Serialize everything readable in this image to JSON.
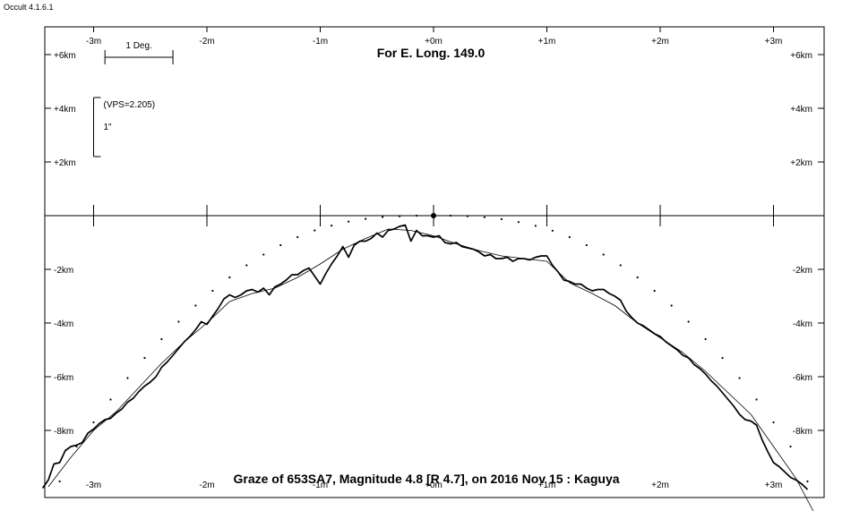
{
  "app": {
    "version": "Occult 4.1.6.1"
  },
  "chart_data": {
    "type": "line",
    "title": "For E. Long. 149.0",
    "caption": "Graze of  653SA7,  Magnitude 4.8 [R 4.7],  on 2016 Nov 15  :  Kaguya",
    "x_unit": "m",
    "y_unit": "km",
    "xlim": [
      -3.45,
      3.45
    ],
    "ylim": [
      -10.3,
      7.0
    ],
    "x_ticks": [
      {
        "value": -3,
        "label": "-3m"
      },
      {
        "value": -2,
        "label": "-2m"
      },
      {
        "value": -1,
        "label": "-1m"
      },
      {
        "value": 0,
        "label": "+0m"
      },
      {
        "value": 1,
        "label": "+1m"
      },
      {
        "value": 2,
        "label": "+2m"
      },
      {
        "value": 3,
        "label": "+3m"
      }
    ],
    "y_ticks_upper": [
      {
        "value": 6,
        "label": "+6km"
      },
      {
        "value": 4,
        "label": "+4km"
      },
      {
        "value": 2,
        "label": "+2km"
      }
    ],
    "y_ticks_lower": [
      {
        "value": -2,
        "label": "-2km"
      },
      {
        "value": -4,
        "label": "-4km"
      },
      {
        "value": -6,
        "label": "-6km"
      },
      {
        "value": -8,
        "label": "-8km"
      }
    ],
    "scale_bar": {
      "label": "1 Deg.",
      "x_from": -2.9,
      "x_to": -2.3,
      "y": 5.9
    },
    "vps_bar": {
      "label": "(VPS=2.205)",
      "sub_label": "1\"",
      "x": -3.0,
      "y_from": 2.2,
      "y_to": 4.4
    },
    "reference_point": {
      "x": 0.0,
      "y": 0.0
    },
    "series": [
      {
        "style": "dotted",
        "points": [
          [
            -3.3,
            -9.9
          ],
          [
            -3.15,
            -8.6
          ],
          [
            -3.0,
            -7.7
          ],
          [
            -2.85,
            -6.85
          ],
          [
            -2.7,
            -6.05
          ],
          [
            -2.55,
            -5.3
          ],
          [
            -2.4,
            -4.6
          ],
          [
            -2.25,
            -3.95
          ],
          [
            -2.1,
            -3.35
          ],
          [
            -1.95,
            -2.8
          ],
          [
            -1.8,
            -2.3
          ],
          [
            -1.65,
            -1.85
          ],
          [
            -1.5,
            -1.45
          ],
          [
            -1.35,
            -1.1
          ],
          [
            -1.2,
            -0.8
          ],
          [
            -1.05,
            -0.55
          ],
          [
            -0.9,
            -0.37
          ],
          [
            -0.75,
            -0.22
          ],
          [
            -0.6,
            -0.12
          ],
          [
            -0.45,
            -0.05
          ],
          [
            -0.3,
            -0.02
          ],
          [
            -0.15,
            0.0
          ],
          [
            0.0,
            0.0
          ],
          [
            0.15,
            0.0
          ],
          [
            0.3,
            -0.02
          ],
          [
            0.45,
            -0.06
          ],
          [
            0.6,
            -0.13
          ],
          [
            0.75,
            -0.24
          ],
          [
            0.9,
            -0.38
          ],
          [
            1.05,
            -0.56
          ],
          [
            1.2,
            -0.8
          ],
          [
            1.35,
            -1.1
          ],
          [
            1.5,
            -1.45
          ],
          [
            1.65,
            -1.85
          ],
          [
            1.8,
            -2.3
          ],
          [
            1.95,
            -2.8
          ],
          [
            2.1,
            -3.35
          ],
          [
            2.25,
            -3.95
          ],
          [
            2.4,
            -4.6
          ],
          [
            2.55,
            -5.3
          ],
          [
            2.7,
            -6.05
          ],
          [
            2.85,
            -6.85
          ],
          [
            3.0,
            -7.7
          ],
          [
            3.15,
            -8.6
          ],
          [
            3.3,
            -9.9
          ]
        ]
      },
      {
        "style": "thin",
        "points": [
          [
            -3.4,
            -10.1
          ],
          [
            -3.2,
            -9.0
          ],
          [
            -3.0,
            -8.0
          ],
          [
            -2.8,
            -7.3
          ],
          [
            -2.6,
            -6.4
          ],
          [
            -2.4,
            -5.5
          ],
          [
            -2.2,
            -4.7
          ],
          [
            -2.0,
            -4.0
          ],
          [
            -1.8,
            -3.2
          ],
          [
            -1.6,
            -2.9
          ],
          [
            -1.4,
            -2.7
          ],
          [
            -1.2,
            -2.3
          ],
          [
            -1.0,
            -1.8
          ],
          [
            -0.8,
            -1.25
          ],
          [
            -0.6,
            -0.85
          ],
          [
            -0.4,
            -0.5
          ],
          [
            -0.2,
            -0.55
          ],
          [
            0.0,
            -0.75
          ],
          [
            0.2,
            -1.05
          ],
          [
            0.4,
            -1.3
          ],
          [
            0.6,
            -1.5
          ],
          [
            0.8,
            -1.6
          ],
          [
            1.0,
            -1.7
          ],
          [
            1.2,
            -2.5
          ],
          [
            1.4,
            -2.9
          ],
          [
            1.6,
            -3.35
          ],
          [
            1.8,
            -4.0
          ],
          [
            2.0,
            -4.55
          ],
          [
            2.2,
            -5.1
          ],
          [
            2.4,
            -5.8
          ],
          [
            2.6,
            -6.6
          ],
          [
            2.8,
            -7.4
          ],
          [
            3.0,
            -8.6
          ],
          [
            3.2,
            -9.8
          ],
          [
            3.35,
            -11.0
          ]
        ]
      },
      {
        "style": "profile",
        "points": [
          [
            -3.45,
            -10.15
          ],
          [
            -3.4,
            -9.85
          ],
          [
            -3.35,
            -9.25
          ],
          [
            -3.3,
            -9.2
          ],
          [
            -3.25,
            -8.75
          ],
          [
            -3.2,
            -8.6
          ],
          [
            -3.15,
            -8.55
          ],
          [
            -3.1,
            -8.45
          ],
          [
            -3.05,
            -8.1
          ],
          [
            -3.0,
            -7.95
          ],
          [
            -2.95,
            -7.75
          ],
          [
            -2.9,
            -7.6
          ],
          [
            -2.85,
            -7.55
          ],
          [
            -2.8,
            -7.35
          ],
          [
            -2.75,
            -7.2
          ],
          [
            -2.7,
            -6.95
          ],
          [
            -2.65,
            -6.8
          ],
          [
            -2.6,
            -6.55
          ],
          [
            -2.55,
            -6.35
          ],
          [
            -2.5,
            -6.2
          ],
          [
            -2.45,
            -6.0
          ],
          [
            -2.4,
            -5.65
          ],
          [
            -2.35,
            -5.45
          ],
          [
            -2.3,
            -5.2
          ],
          [
            -2.25,
            -4.95
          ],
          [
            -2.2,
            -4.7
          ],
          [
            -2.15,
            -4.5
          ],
          [
            -2.1,
            -4.25
          ],
          [
            -2.05,
            -3.95
          ],
          [
            -2.0,
            -4.05
          ],
          [
            -1.95,
            -3.75
          ],
          [
            -1.9,
            -3.45
          ],
          [
            -1.85,
            -3.1
          ],
          [
            -1.8,
            -2.95
          ],
          [
            -1.75,
            -3.05
          ],
          [
            -1.7,
            -2.95
          ],
          [
            -1.65,
            -2.8
          ],
          [
            -1.6,
            -2.75
          ],
          [
            -1.55,
            -2.85
          ],
          [
            -1.5,
            -2.7
          ],
          [
            -1.45,
            -2.95
          ],
          [
            -1.4,
            -2.65
          ],
          [
            -1.35,
            -2.55
          ],
          [
            -1.3,
            -2.4
          ],
          [
            -1.25,
            -2.2
          ],
          [
            -1.2,
            -2.2
          ],
          [
            -1.15,
            -2.05
          ],
          [
            -1.1,
            -1.95
          ],
          [
            -1.05,
            -2.25
          ],
          [
            -1.0,
            -2.55
          ],
          [
            -0.95,
            -2.15
          ],
          [
            -0.9,
            -1.8
          ],
          [
            -0.85,
            -1.5
          ],
          [
            -0.8,
            -1.15
          ],
          [
            -0.75,
            -1.55
          ],
          [
            -0.7,
            -1.1
          ],
          [
            -0.65,
            -0.95
          ],
          [
            -0.6,
            -0.95
          ],
          [
            -0.55,
            -0.85
          ],
          [
            -0.5,
            -0.65
          ],
          [
            -0.45,
            -0.8
          ],
          [
            -0.4,
            -0.55
          ],
          [
            -0.35,
            -0.5
          ],
          [
            -0.3,
            -0.4
          ],
          [
            -0.25,
            -0.35
          ],
          [
            -0.2,
            -0.95
          ],
          [
            -0.15,
            -0.55
          ],
          [
            -0.1,
            -0.75
          ],
          [
            -0.05,
            -0.75
          ],
          [
            0.0,
            -0.8
          ],
          [
            0.05,
            -0.75
          ],
          [
            0.1,
            -1.0
          ],
          [
            0.15,
            -1.05
          ],
          [
            0.2,
            -1.0
          ],
          [
            0.25,
            -1.15
          ],
          [
            0.3,
            -1.2
          ],
          [
            0.35,
            -1.25
          ],
          [
            0.4,
            -1.35
          ],
          [
            0.45,
            -1.5
          ],
          [
            0.5,
            -1.45
          ],
          [
            0.55,
            -1.6
          ],
          [
            0.6,
            -1.6
          ],
          [
            0.65,
            -1.55
          ],
          [
            0.7,
            -1.7
          ],
          [
            0.75,
            -1.6
          ],
          [
            0.8,
            -1.6
          ],
          [
            0.85,
            -1.65
          ],
          [
            0.9,
            -1.55
          ],
          [
            0.95,
            -1.5
          ],
          [
            1.0,
            -1.5
          ],
          [
            1.05,
            -1.85
          ],
          [
            1.1,
            -2.1
          ],
          [
            1.15,
            -2.4
          ],
          [
            1.2,
            -2.45
          ],
          [
            1.25,
            -2.55
          ],
          [
            1.3,
            -2.55
          ],
          [
            1.35,
            -2.7
          ],
          [
            1.4,
            -2.8
          ],
          [
            1.45,
            -2.75
          ],
          [
            1.5,
            -2.75
          ],
          [
            1.55,
            -2.9
          ],
          [
            1.6,
            -3.0
          ],
          [
            1.65,
            -3.15
          ],
          [
            1.7,
            -3.55
          ],
          [
            1.75,
            -3.8
          ],
          [
            1.8,
            -4.0
          ],
          [
            1.85,
            -4.1
          ],
          [
            1.9,
            -4.25
          ],
          [
            1.95,
            -4.4
          ],
          [
            2.0,
            -4.5
          ],
          [
            2.05,
            -4.7
          ],
          [
            2.1,
            -4.85
          ],
          [
            2.15,
            -5.0
          ],
          [
            2.2,
            -5.2
          ],
          [
            2.25,
            -5.3
          ],
          [
            2.3,
            -5.55
          ],
          [
            2.35,
            -5.7
          ],
          [
            2.4,
            -5.9
          ],
          [
            2.45,
            -6.15
          ],
          [
            2.5,
            -6.35
          ],
          [
            2.55,
            -6.6
          ],
          [
            2.6,
            -6.85
          ],
          [
            2.65,
            -7.1
          ],
          [
            2.7,
            -7.4
          ],
          [
            2.75,
            -7.6
          ],
          [
            2.8,
            -7.65
          ],
          [
            2.85,
            -7.8
          ],
          [
            2.9,
            -8.35
          ],
          [
            2.95,
            -8.8
          ],
          [
            3.0,
            -9.2
          ],
          [
            3.05,
            -9.35
          ],
          [
            3.1,
            -9.55
          ],
          [
            3.15,
            -9.75
          ],
          [
            3.2,
            -9.85
          ],
          [
            3.25,
            -10.0
          ],
          [
            3.3,
            -10.2
          ]
        ]
      }
    ]
  }
}
